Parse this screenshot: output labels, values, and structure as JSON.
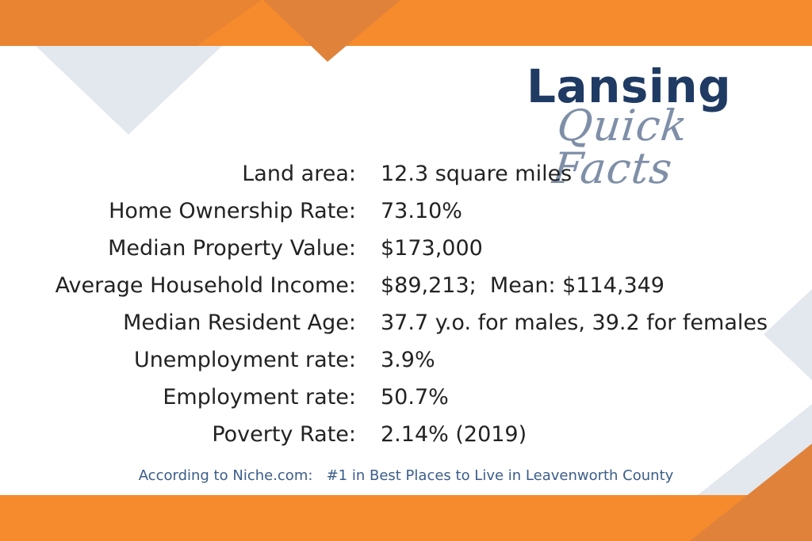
{
  "header": {
    "title": "Lansing",
    "subtitle": "Quick Facts"
  },
  "facts": [
    {
      "label": "Land area:",
      "value": "12.3 square miles"
    },
    {
      "label": "Home Ownership Rate:",
      "value": "73.10%"
    },
    {
      "label": "Median Property Value:",
      "value": "$173,000"
    },
    {
      "label": "Average Household Income:",
      "value": "$89,213;  Mean: $114,349"
    },
    {
      "label": "Median Resident Age:",
      "value": "37.7 y.o. for males, 39.2 for females"
    },
    {
      "label": "Unemployment rate:",
      "value": "3.9%"
    },
    {
      "label": "Employment rate:",
      "value": "50.7%"
    },
    {
      "label": "Poverty Rate:",
      "value": "2.14% (2019)"
    }
  ],
  "footer": {
    "note": "According to Niche.com:   #1 in Best Places to Live in Leavenworth County"
  },
  "colors": {
    "orange": "#f68b2d",
    "dark_orange": "#e07e32",
    "navy": "#1f3b63",
    "slate": "#7f8fa8",
    "light_gray": "#e3e7ee"
  }
}
